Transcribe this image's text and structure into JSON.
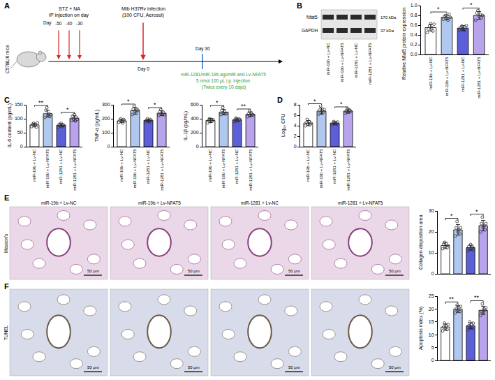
{
  "diagram": {
    "panel": "A",
    "subject": "C57BL/6 mice",
    "injection_label": [
      "STZ + NA",
      "IP injection on day"
    ],
    "day_prefix": "Day",
    "injection_days": [
      -50,
      -40,
      -30
    ],
    "infection_label": [
      "Mtb H37Rv infection",
      "(100 CFU, Aerosol)"
    ],
    "infection_day": "Day 0",
    "treatment_day": "Day 30",
    "treatment_label": [
      "miR-1281/miR-19b agomiR and Lv-NFAT5",
      "5 nmol 100 μL i.p. injection",
      "(Twice every 10 days)"
    ]
  },
  "blot": {
    "panel": "B",
    "bands": [
      "Nfat5",
      "GAPDH"
    ],
    "sizes": [
      "170 kDa",
      "37 kDa"
    ],
    "lanes": [
      "miR-19b + Lv-NC",
      "miR-19b + Lv-NFAT5",
      "miR-1281 + Lv-NC",
      "miR-1281 + Lv-NFAT5"
    ]
  },
  "images": [
    {
      "panel": "E",
      "stain": "Masson's",
      "scale_bar": "50 μm",
      "titles": [
        "miR-19b + Lv-NC",
        "miR-19b + Lv-NFAT5",
        "miR-1281 + Lv-NC",
        "miR-1281 + Lv-NFAT5"
      ]
    },
    {
      "panel": "F",
      "stain": "TUNEL",
      "scale_bar": "50 μm"
    }
  ],
  "chart_data": [
    {
      "type": "bar",
      "panel": "B",
      "ylabel": "Relative Nfat5 protein expression",
      "categories": [
        "miR-19b + Lv-NC",
        "miR-19b + Lv-NFAT5",
        "miR-1281 + Lv-NC",
        "miR-1281 + Lv-NFAT5"
      ],
      "values": [
        0.55,
        0.76,
        0.54,
        0.8
      ],
      "errors": [
        0.07,
        0.05,
        0.05,
        0.08
      ],
      "points": [
        [
          0.45,
          0.52,
          0.58,
          0.63,
          0.55,
          0.48,
          0.62
        ],
        [
          0.72,
          0.78,
          0.8,
          0.74,
          0.7,
          0.82,
          0.76
        ],
        [
          0.5,
          0.55,
          0.58,
          0.52,
          0.49,
          0.56,
          0.59
        ],
        [
          0.7,
          0.85,
          0.9,
          0.78,
          0.82,
          0.75,
          0.8
        ]
      ],
      "colors": [
        "#ffffff",
        "#b0c8f0",
        "#5c5fd8",
        "#b7a4ea"
      ],
      "ylim": [
        0,
        1
      ],
      "yticks": [
        {
          "value": 0,
          "label": "0.0"
        },
        0.2,
        0.4,
        0.6,
        0.8,
        {
          "value": 1,
          "label": "1.0"
        }
      ],
      "significance": [
        {
          "groups": [
            0,
            1
          ],
          "label": "*"
        },
        {
          "groups": [
            2,
            3
          ],
          "label": "*"
        }
      ]
    },
    {
      "type": "bar",
      "panel": "C",
      "ylabel": "IL-6 content (pg/mL)",
      "categories": [
        "miR-19b + Lv-NC",
        "miR-19b + Lv-NFAT5",
        "miR-1281 + Lv-NC",
        "miR-1281 + Lv-NFAT5"
      ],
      "values": [
        78,
        118,
        77,
        102
      ],
      "errors": [
        6,
        12,
        6,
        10
      ],
      "points": [
        [
          72,
          80,
          84,
          75,
          78,
          70,
          85
        ],
        [
          105,
          130,
          140,
          112,
          118,
          108,
          115
        ],
        [
          70,
          80,
          75,
          84,
          72,
          78,
          76
        ],
        [
          95,
          110,
          100,
          115,
          92,
          105,
          98
        ]
      ],
      "colors": [
        "#ffffff",
        "#b0c8f0",
        "#5c5fd8",
        "#b7a4ea"
      ],
      "ylim": [
        0,
        150
      ],
      "yticks": [
        0,
        50,
        100,
        150
      ],
      "significance": [
        {
          "groups": [
            0,
            1
          ],
          "label": "**"
        },
        {
          "groups": [
            2,
            3
          ],
          "label": "*"
        }
      ]
    },
    {
      "type": "bar",
      "panel": "C",
      "ylabel": "TNF-α (pg/mL)",
      "categories": [
        "miR-19b + Lv-NC",
        "miR-19b + Lv-NFAT5",
        "miR-1281 + Lv-NC",
        "miR-1281 + Lv-NFAT5"
      ],
      "values": [
        185,
        258,
        188,
        240
      ],
      "errors": [
        12,
        25,
        10,
        18
      ],
      "points": [
        [
          175,
          190,
          200,
          180,
          170,
          195,
          185
        ],
        [
          230,
          270,
          290,
          250,
          240,
          265,
          262
        ],
        [
          180,
          190,
          200,
          185,
          178,
          195,
          188
        ],
        [
          225,
          250,
          265,
          235,
          230,
          245,
          230
        ]
      ],
      "colors": [
        "#ffffff",
        "#b0c8f0",
        "#5c5fd8",
        "#b7a4ea"
      ],
      "ylim": [
        0,
        300
      ],
      "yticks": [
        0,
        100,
        200,
        300
      ],
      "significance": [
        {
          "groups": [
            0,
            1
          ],
          "label": "*"
        },
        {
          "groups": [
            2,
            3
          ],
          "label": "*"
        }
      ]
    },
    {
      "type": "bar",
      "panel": "C",
      "ylabel": "IL-1β (pg/mL)",
      "categories": [
        "miR-19b + Lv-NC",
        "miR-19b + Lv-NFAT5",
        "miR-1281 + Lv-NC",
        "miR-1281 + Lv-NFAT5"
      ],
      "values": [
        375,
        495,
        385,
        465
      ],
      "errors": [
        30,
        40,
        25,
        35
      ],
      "points": [
        [
          340,
          380,
          400,
          360,
          390,
          370,
          385
        ],
        [
          460,
          520,
          560,
          480,
          500,
          470,
          475
        ],
        [
          360,
          390,
          410,
          380,
          370,
          395,
          390
        ],
        [
          430,
          470,
          510,
          450,
          480,
          460,
          455
        ]
      ],
      "colors": [
        "#ffffff",
        "#b0c8f0",
        "#5c5fd8",
        "#b7a4ea"
      ],
      "ylim": [
        0,
        600
      ],
      "yticks": [
        0,
        200,
        400,
        600
      ],
      "significance": [
        {
          "groups": [
            0,
            1
          ],
          "label": "*"
        },
        {
          "groups": [
            2,
            3
          ],
          "label": "**"
        }
      ]
    },
    {
      "type": "bar",
      "panel": "D",
      "ylabel": "Log₁₀ CFU",
      "categories": [
        "miR-19b + Lv-NC",
        "miR-19b + Lv-NFAT5",
        "miR-1281 + Lv-NC",
        "miR-1281 + Lv-NFAT5"
      ],
      "values": [
        4.5,
        6.8,
        4.5,
        6.8
      ],
      "errors": [
        0.5,
        0.6,
        0.3,
        0.4
      ],
      "points": [
        [
          4.0,
          4.6,
          5.2,
          4.3,
          4.8,
          4.2,
          4.5
        ],
        [
          6.2,
          7.0,
          7.8,
          6.5,
          6.9,
          6.6,
          7.1
        ],
        [
          4.2,
          4.5,
          4.8,
          4.4,
          4.6,
          4.3,
          4.7
        ],
        [
          6.4,
          6.8,
          7.2,
          6.6,
          7.0,
          6.9,
          6.7
        ]
      ],
      "colors": [
        "#ffffff",
        "#b0c8f0",
        "#5c5fd8",
        "#b7a4ea"
      ],
      "ylim": [
        0,
        8
      ],
      "yticks": [
        0,
        2,
        4,
        6,
        8
      ],
      "significance": [
        {
          "groups": [
            0,
            1
          ],
          "label": "*"
        },
        {
          "groups": [
            2,
            3
          ],
          "label": "*"
        }
      ]
    },
    {
      "type": "bar",
      "panel": "E",
      "ylabel": "Collagen disposition area",
      "tick_labels": "y",
      "categories": [
        "miR-19b + Lv-NC",
        "miR-19b + Lv-NFAT5",
        "miR-1281 + Lv-NC",
        "miR-1281 + Lv-NFAT5"
      ],
      "values": [
        13.5,
        21,
        12.5,
        23
      ],
      "errors": [
        1.5,
        2.5,
        1.2,
        2.5
      ],
      "points": [
        [
          12,
          14,
          15,
          13,
          14.5,
          12.5,
          13.5
        ],
        [
          18,
          22,
          25,
          20,
          21,
          19,
          22
        ],
        [
          11,
          13,
          12,
          14,
          12.5,
          13,
          11.5
        ],
        [
          20,
          24,
          27,
          22,
          23,
          21,
          24
        ]
      ],
      "colors": [
        "#ffffff",
        "#b0c8f0",
        "#5c5fd8",
        "#b7a4ea"
      ],
      "ylim": [
        0,
        30
      ],
      "yticks": [
        0,
        10,
        20,
        30
      ],
      "significance": [
        {
          "groups": [
            0,
            1
          ],
          "label": "*"
        },
        {
          "groups": [
            2,
            3
          ],
          "label": "*"
        }
      ]
    },
    {
      "type": "bar",
      "panel": "F",
      "ylabel": "Apoptosis index (%)",
      "tick_labels": "y",
      "categories": [
        "miR-19b + Lv-NC",
        "miR-19b + Lv-NFAT5",
        "miR-1281 + Lv-NC",
        "miR-1281 + Lv-NFAT5"
      ],
      "values": [
        13,
        20,
        13.5,
        19.5
      ],
      "errors": [
        1.2,
        1.3,
        1.2,
        1.6
      ],
      "points": [
        [
          11.5,
          13,
          14.5,
          12.5,
          13.5,
          12,
          14
        ],
        [
          18.5,
          20,
          21.5,
          19.5,
          20.5,
          19,
          21
        ],
        [
          12,
          13.5,
          15,
          13,
          14,
          12.5,
          14.5
        ],
        [
          17.5,
          19,
          22,
          18.5,
          20,
          19.5,
          20.5
        ]
      ],
      "colors": [
        "#ffffff",
        "#b0c8f0",
        "#5c5fd8",
        "#b7a4ea"
      ],
      "ylim": [
        0,
        25
      ],
      "yticks": [
        0,
        5,
        10,
        15,
        20,
        25
      ],
      "significance": [
        {
          "groups": [
            0,
            1
          ],
          "label": "**"
        },
        {
          "groups": [
            2,
            3
          ],
          "label": "**"
        }
      ]
    }
  ]
}
